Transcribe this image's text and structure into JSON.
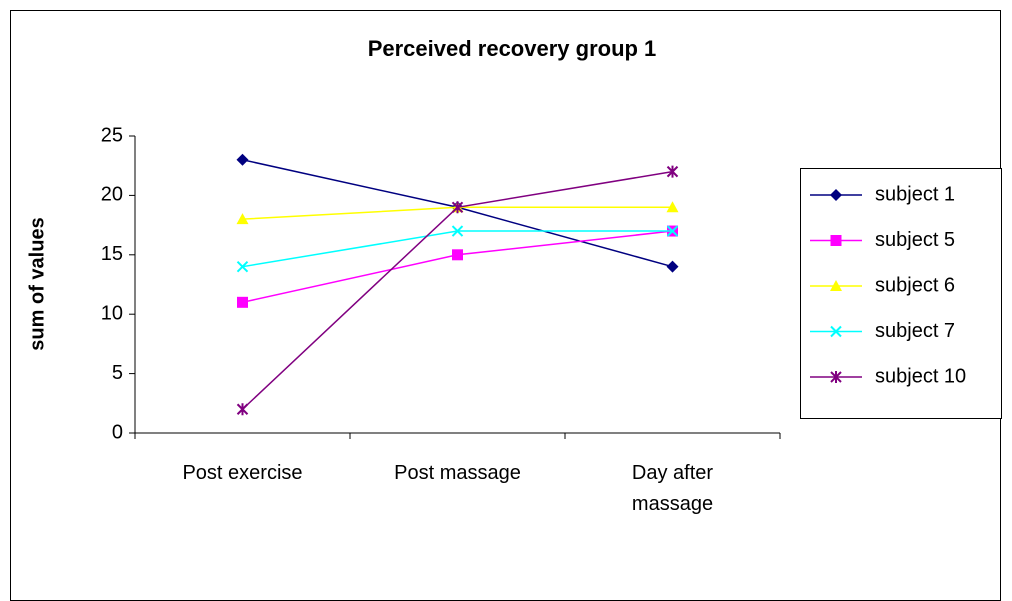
{
  "chart_data": {
    "type": "line",
    "title": "Perceived recovery  group 1",
    "y_label": "sum of values",
    "categories": [
      "Post exercise",
      "Post massage",
      "Day after massage"
    ],
    "series": [
      {
        "name": "subject 1",
        "color": "#000080",
        "marker": "diamond",
        "values": [
          23,
          19,
          14
        ]
      },
      {
        "name": "subject 5",
        "color": "#FF00FF",
        "marker": "square",
        "values": [
          11,
          15,
          17
        ]
      },
      {
        "name": "subject 6",
        "color": "#FFFF00",
        "marker": "triangle",
        "values": [
          18,
          19,
          19
        ]
      },
      {
        "name": "subject 7",
        "color": "#00FFFF",
        "marker": "x",
        "values": [
          14,
          17,
          17
        ]
      },
      {
        "name": "subject 10",
        "color": "#800080",
        "marker": "star",
        "values": [
          2,
          19,
          22
        ]
      }
    ],
    "ylim": [
      0,
      25
    ],
    "yticks": [
      0,
      5,
      10,
      15,
      20,
      25
    ],
    "grid": false,
    "legend": "right"
  }
}
